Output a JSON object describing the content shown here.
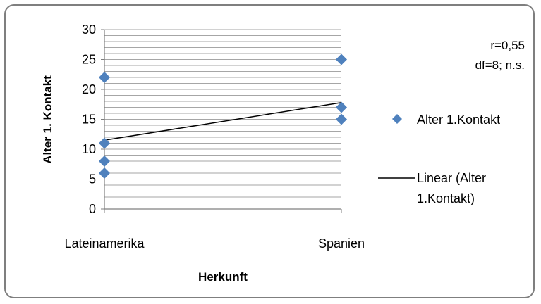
{
  "chart_data": {
    "type": "scatter",
    "categories": [
      "Lateinamerika",
      "Spanien"
    ],
    "xlabel": "Herkunft",
    "ylabel": "Alter  1. Kontakt",
    "ylim": [
      0,
      30
    ],
    "yticks": [
      "0",
      "5",
      "10",
      "15",
      "20",
      "25",
      "30"
    ],
    "grid": true,
    "legend_position": "right",
    "annotations": [
      "r=0,55",
      "df=8; n.s."
    ],
    "series": [
      {
        "name": "Alter 1.Kontakt",
        "kind": "scatter",
        "color": "#4f81bd",
        "marker": "diamond",
        "points": [
          {
            "x": "Lateinamerika",
            "y": 22
          },
          {
            "x": "Lateinamerika",
            "y": 11
          },
          {
            "x": "Lateinamerika",
            "y": 8
          },
          {
            "x": "Lateinamerika",
            "y": 6
          },
          {
            "x": "Spanien",
            "y": 25
          },
          {
            "x": "Spanien",
            "y": 17
          },
          {
            "x": "Spanien",
            "y": 15
          }
        ]
      },
      {
        "name": "Linear (Alter 1.Kontakt)",
        "kind": "trendline",
        "color": "#000000",
        "points": [
          {
            "x": "Lateinamerika",
            "y": 11.5
          },
          {
            "x": "Spanien",
            "y": 17.8
          }
        ]
      }
    ],
    "legend": {
      "marker_entry": "Alter 1.Kontakt",
      "line_entry_lines": [
        "Linear (Alter",
        "1.Kontakt)"
      ]
    }
  }
}
